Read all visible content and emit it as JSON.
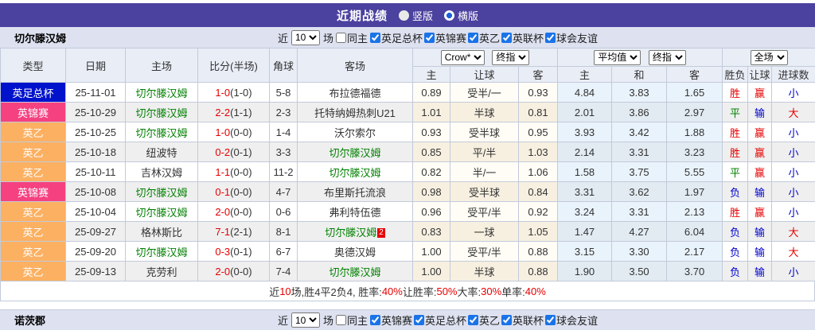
{
  "title_bar": {
    "title": "近期战绩",
    "radios": [
      {
        "label": "竖版",
        "checked": false
      },
      {
        "label": "横版",
        "checked": true
      }
    ]
  },
  "team_filter": {
    "team": "切尔滕汉姆",
    "near": "近",
    "count": "10",
    "unit": "场",
    "same_home": "同主",
    "same_home_checked": false,
    "leagues": [
      {
        "label": "英足总杯",
        "checked": true
      },
      {
        "label": "英锦赛",
        "checked": true
      },
      {
        "label": "英乙",
        "checked": true
      },
      {
        "label": "英联杯",
        "checked": true
      },
      {
        "label": "球会友谊",
        "checked": true
      }
    ]
  },
  "table": {
    "head": {
      "type": "类型",
      "date": "日期",
      "home": "主场",
      "score": "比分(半场)",
      "corner": "角球",
      "away": "客场",
      "selects": {
        "odds_source": "Crow*",
        "odds_period": "终指",
        "avg_source": "平均值",
        "avg_period": "终指",
        "scope": "全场"
      },
      "sub": [
        "主",
        "让球",
        "客",
        "主",
        "和",
        "客",
        "胜负",
        "让球",
        "进球数"
      ]
    },
    "type_colors": {
      "英足总杯": "#0012cc",
      "英锦赛": "#f5417f",
      "英乙": "#fcb061"
    },
    "value_colors": {
      "胜": "#e60000",
      "平": "#008000",
      "负": "#0000cc",
      "赢": "#e60000",
      "输": "#0000cc",
      "大": "#e60000",
      "小": "#0000cc"
    },
    "team_highlight_color": "#008000",
    "rows": [
      {
        "type": "英足总杯",
        "date": "25-11-01",
        "home": "切尔滕汉姆",
        "home_hl": true,
        "score": "1-0",
        "half": "(1-0)",
        "corner": "5-8",
        "away": "布拉德福德",
        "away_hl": false,
        "away_badge": "",
        "odds": [
          "0.89",
          "受半/一",
          "0.93"
        ],
        "avg": [
          "4.84",
          "3.83",
          "1.65"
        ],
        "res": [
          "胜",
          "赢",
          "小"
        ]
      },
      {
        "type": "英锦赛",
        "date": "25-10-29",
        "home": "切尔滕汉姆",
        "home_hl": true,
        "score": "2-2",
        "half": "(1-1)",
        "corner": "2-3",
        "away": "托特纳姆热刺U21",
        "away_hl": false,
        "away_badge": "",
        "odds": [
          "1.01",
          "半球",
          "0.81"
        ],
        "avg": [
          "2.01",
          "3.86",
          "2.97"
        ],
        "res": [
          "平",
          "输",
          "大"
        ]
      },
      {
        "type": "英乙",
        "date": "25-10-25",
        "home": "切尔滕汉姆",
        "home_hl": true,
        "score": "1-0",
        "half": "(0-0)",
        "corner": "1-4",
        "away": "沃尔索尔",
        "away_hl": false,
        "away_badge": "",
        "odds": [
          "0.93",
          "受半球",
          "0.95"
        ],
        "avg": [
          "3.93",
          "3.42",
          "1.88"
        ],
        "res": [
          "胜",
          "赢",
          "小"
        ]
      },
      {
        "type": "英乙",
        "date": "25-10-18",
        "home": "纽波特",
        "home_hl": false,
        "score": "0-2",
        "half": "(0-1)",
        "corner": "3-3",
        "away": "切尔滕汉姆",
        "away_hl": true,
        "away_badge": "",
        "odds": [
          "0.85",
          "平/半",
          "1.03"
        ],
        "avg": [
          "2.14",
          "3.31",
          "3.23"
        ],
        "res": [
          "胜",
          "赢",
          "小"
        ]
      },
      {
        "type": "英乙",
        "date": "25-10-11",
        "home": "吉林汉姆",
        "home_hl": false,
        "score": "1-1",
        "half": "(0-0)",
        "corner": "11-2",
        "away": "切尔滕汉姆",
        "away_hl": true,
        "away_badge": "",
        "odds": [
          "0.82",
          "半/一",
          "1.06"
        ],
        "avg": [
          "1.58",
          "3.75",
          "5.55"
        ],
        "res": [
          "平",
          "赢",
          "小"
        ]
      },
      {
        "type": "英锦赛",
        "date": "25-10-08",
        "home": "切尔滕汉姆",
        "home_hl": true,
        "score": "0-1",
        "half": "(0-0)",
        "corner": "4-7",
        "away": "布里斯托流浪",
        "away_hl": false,
        "away_badge": "",
        "odds": [
          "0.98",
          "受半球",
          "0.84"
        ],
        "avg": [
          "3.31",
          "3.62",
          "1.97"
        ],
        "res": [
          "负",
          "输",
          "小"
        ]
      },
      {
        "type": "英乙",
        "date": "25-10-04",
        "home": "切尔滕汉姆",
        "home_hl": true,
        "score": "2-0",
        "half": "(0-0)",
        "corner": "0-6",
        "away": "弗利特伍德",
        "away_hl": false,
        "away_badge": "",
        "odds": [
          "0.96",
          "受平/半",
          "0.92"
        ],
        "avg": [
          "3.24",
          "3.31",
          "2.13"
        ],
        "res": [
          "胜",
          "赢",
          "小"
        ]
      },
      {
        "type": "英乙",
        "date": "25-09-27",
        "home": "格林斯比",
        "home_hl": false,
        "score": "7-1",
        "half": "(2-1)",
        "corner": "8-1",
        "away": "切尔滕汉姆",
        "away_hl": true,
        "away_badge": "2",
        "odds": [
          "0.83",
          "一球",
          "1.05"
        ],
        "avg": [
          "1.47",
          "4.27",
          "6.04"
        ],
        "res": [
          "负",
          "输",
          "大"
        ]
      },
      {
        "type": "英乙",
        "date": "25-09-20",
        "home": "切尔滕汉姆",
        "home_hl": true,
        "score": "0-3",
        "half": "(0-1)",
        "corner": "6-7",
        "away": "奥德汉姆",
        "away_hl": false,
        "away_badge": "",
        "odds": [
          "1.00",
          "受平/半",
          "0.88"
        ],
        "avg": [
          "3.15",
          "3.30",
          "2.17"
        ],
        "res": [
          "负",
          "输",
          "大"
        ]
      },
      {
        "type": "英乙",
        "date": "25-09-13",
        "home": "克劳利",
        "home_hl": false,
        "score": "2-0",
        "half": "(0-0)",
        "corner": "7-4",
        "away": "切尔滕汉姆",
        "away_hl": true,
        "away_badge": "",
        "odds": [
          "1.00",
          "半球",
          "0.88"
        ],
        "avg": [
          "1.90",
          "3.50",
          "3.70"
        ],
        "res": [
          "负",
          "输",
          "小"
        ]
      }
    ]
  },
  "summary": {
    "parts": [
      {
        "t": "近"
      },
      {
        "t": "10",
        "red": true
      },
      {
        "t": "场,胜4平2负4, 胜率:"
      },
      {
        "t": "40%",
        "red": true
      },
      {
        "t": " 让胜率:"
      },
      {
        "t": "50%",
        "red": true
      },
      {
        "t": " 大率:"
      },
      {
        "t": "30%",
        "red": true
      },
      {
        "t": " 单率:"
      },
      {
        "t": "40%",
        "red": true
      }
    ]
  },
  "next_section": {
    "team": "诺茨郡",
    "near": "近",
    "count": "10",
    "unit": "场",
    "same_home": "同主",
    "same_home_checked": false,
    "leagues": [
      {
        "label": "英锦赛",
        "checked": true
      },
      {
        "label": "英足总杯",
        "checked": true
      },
      {
        "label": "英乙",
        "checked": true
      },
      {
        "label": "英联杯",
        "checked": true
      },
      {
        "label": "球会友谊",
        "checked": true
      }
    ]
  }
}
